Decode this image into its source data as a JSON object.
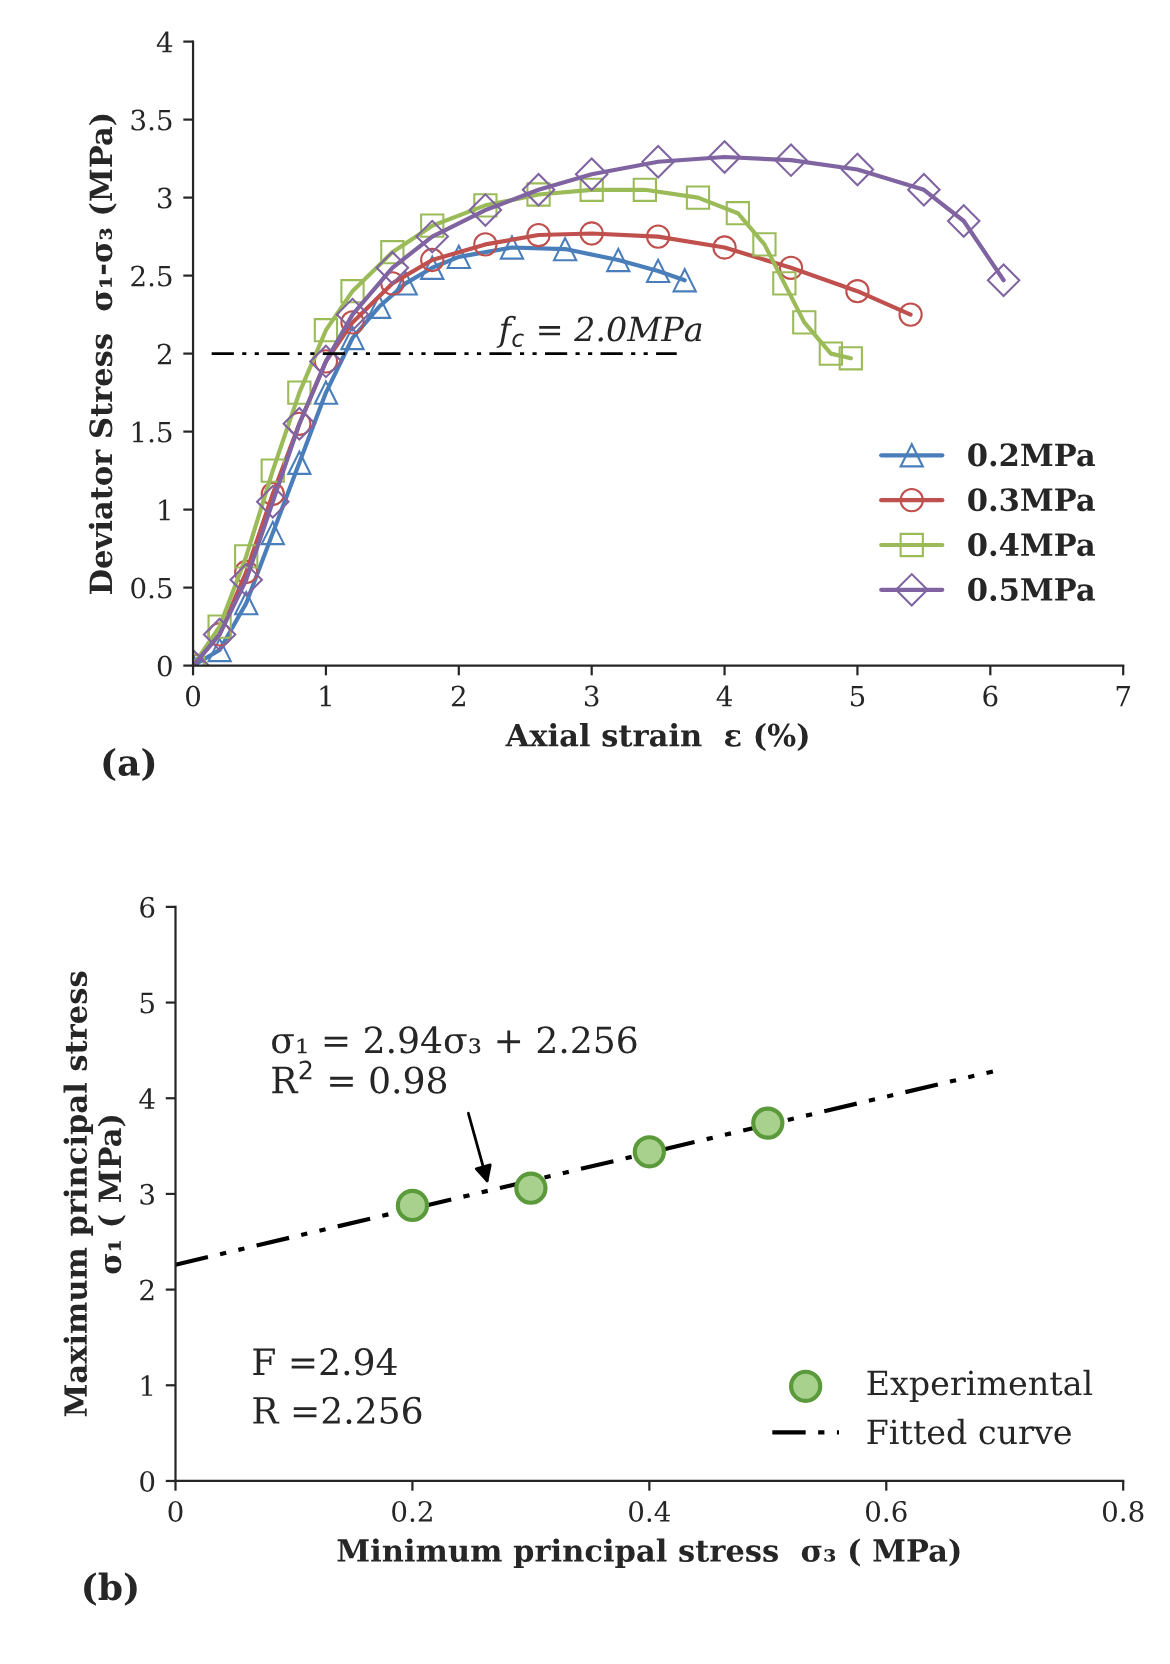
{
  "chart_data": [
    {
      "type": "line",
      "xlabel": "Axial strain  ε (%)",
      "ylabel": "Deviator Stress  σ₁-σ₃ (MPa)",
      "xlim": [
        0,
        7
      ],
      "ylim": [
        0,
        4
      ],
      "xticks": [
        0,
        1,
        2,
        3,
        4,
        5,
        6,
        7
      ],
      "yticks": [
        0,
        0.5,
        1,
        1.5,
        2,
        2.5,
        3,
        3.5,
        4
      ],
      "grid": false,
      "legend": "bottom right",
      "series": [
        {
          "name": "0.2MPa",
          "color": "#4a7ebb",
          "marker": "triangle",
          "x": [
            0,
            0.2,
            0.4,
            0.6,
            0.8,
            1.0,
            1.2,
            1.4,
            1.6,
            1.8,
            2.0,
            2.4,
            2.8,
            3.2,
            3.5,
            3.7
          ],
          "values": [
            0,
            0.1,
            0.4,
            0.85,
            1.3,
            1.75,
            2.1,
            2.3,
            2.45,
            2.55,
            2.62,
            2.68,
            2.67,
            2.6,
            2.53,
            2.47
          ]
        },
        {
          "name": "0.3MPa",
          "color": "#c0504d",
          "marker": "circle",
          "x": [
            0,
            0.2,
            0.4,
            0.6,
            0.8,
            1.0,
            1.2,
            1.5,
            1.8,
            2.2,
            2.6,
            3.0,
            3.5,
            4.0,
            4.5,
            5.0,
            5.4
          ],
          "values": [
            0,
            0.2,
            0.6,
            1.1,
            1.55,
            1.95,
            2.2,
            2.45,
            2.6,
            2.7,
            2.76,
            2.77,
            2.75,
            2.68,
            2.55,
            2.4,
            2.25
          ]
        },
        {
          "name": "0.4MPa",
          "color": "#9bbb59",
          "marker": "square",
          "x": [
            0,
            0.2,
            0.4,
            0.6,
            0.8,
            1.0,
            1.2,
            1.5,
            1.8,
            2.2,
            2.6,
            3.0,
            3.4,
            3.8,
            4.1,
            4.3,
            4.45,
            4.6,
            4.8,
            4.95
          ],
          "values": [
            0,
            0.25,
            0.7,
            1.25,
            1.75,
            2.15,
            2.4,
            2.65,
            2.82,
            2.95,
            3.02,
            3.05,
            3.05,
            3.0,
            2.9,
            2.7,
            2.45,
            2.2,
            2.0,
            1.97
          ]
        },
        {
          "name": "0.5MPa",
          "color": "#8064a2",
          "marker": "diamond",
          "x": [
            0,
            0.2,
            0.4,
            0.6,
            0.8,
            1.0,
            1.2,
            1.5,
            1.8,
            2.2,
            2.6,
            3.0,
            3.5,
            4.0,
            4.5,
            5.0,
            5.5,
            5.8,
            6.1
          ],
          "values": [
            0,
            0.2,
            0.55,
            1.05,
            1.55,
            1.95,
            2.25,
            2.55,
            2.75,
            2.92,
            3.05,
            3.15,
            3.23,
            3.26,
            3.24,
            3.18,
            3.05,
            2.85,
            2.47
          ]
        }
      ],
      "ref_lines": [
        {
          "axis": "y",
          "value": 2,
          "label": "f$_{c}$ = 2.0MPa",
          "color": "#000000",
          "line_style": "dashed"
        }
      ],
      "annotations": [
        "(a)"
      ]
    },
    {
      "type": "scatter",
      "xlabel": "Minimum principal stress  σ₃ ( MPa)",
      "ylabel": "Maximum principal stress\nσ₁ ( MPa)",
      "xlim": [
        0,
        0.8
      ],
      "ylim": [
        0,
        6
      ],
      "xticks": [
        0,
        0.2,
        0.4,
        0.6,
        0.8
      ],
      "yticks": [
        0,
        1,
        2,
        3,
        4,
        5,
        6
      ],
      "grid": false,
      "legend": "bottom right",
      "series": [
        {
          "name": "Experimental",
          "type": "scatter",
          "color": "#a9d18e",
          "marker": "circle",
          "x": [
            0.2,
            0.3,
            0.4,
            0.5
          ],
          "values": [
            2.88,
            3.06,
            3.44,
            3.74
          ]
        },
        {
          "name": "Fitted curve",
          "type": "line",
          "color": "#000000",
          "marker": "none",
          "line_style": "dashed",
          "x": [
            0,
            0.69
          ],
          "values": [
            2.26,
            4.28
          ]
        }
      ],
      "annotations": [
        {
          "text": "σ₁ = 2.94σ₃ + 2.256\nR$^{2}$ = 0.98",
          "x": 0.265,
          "y": 3.05
        },
        "F =2.94\nR =2.256",
        "(b)"
      ]
    }
  ]
}
